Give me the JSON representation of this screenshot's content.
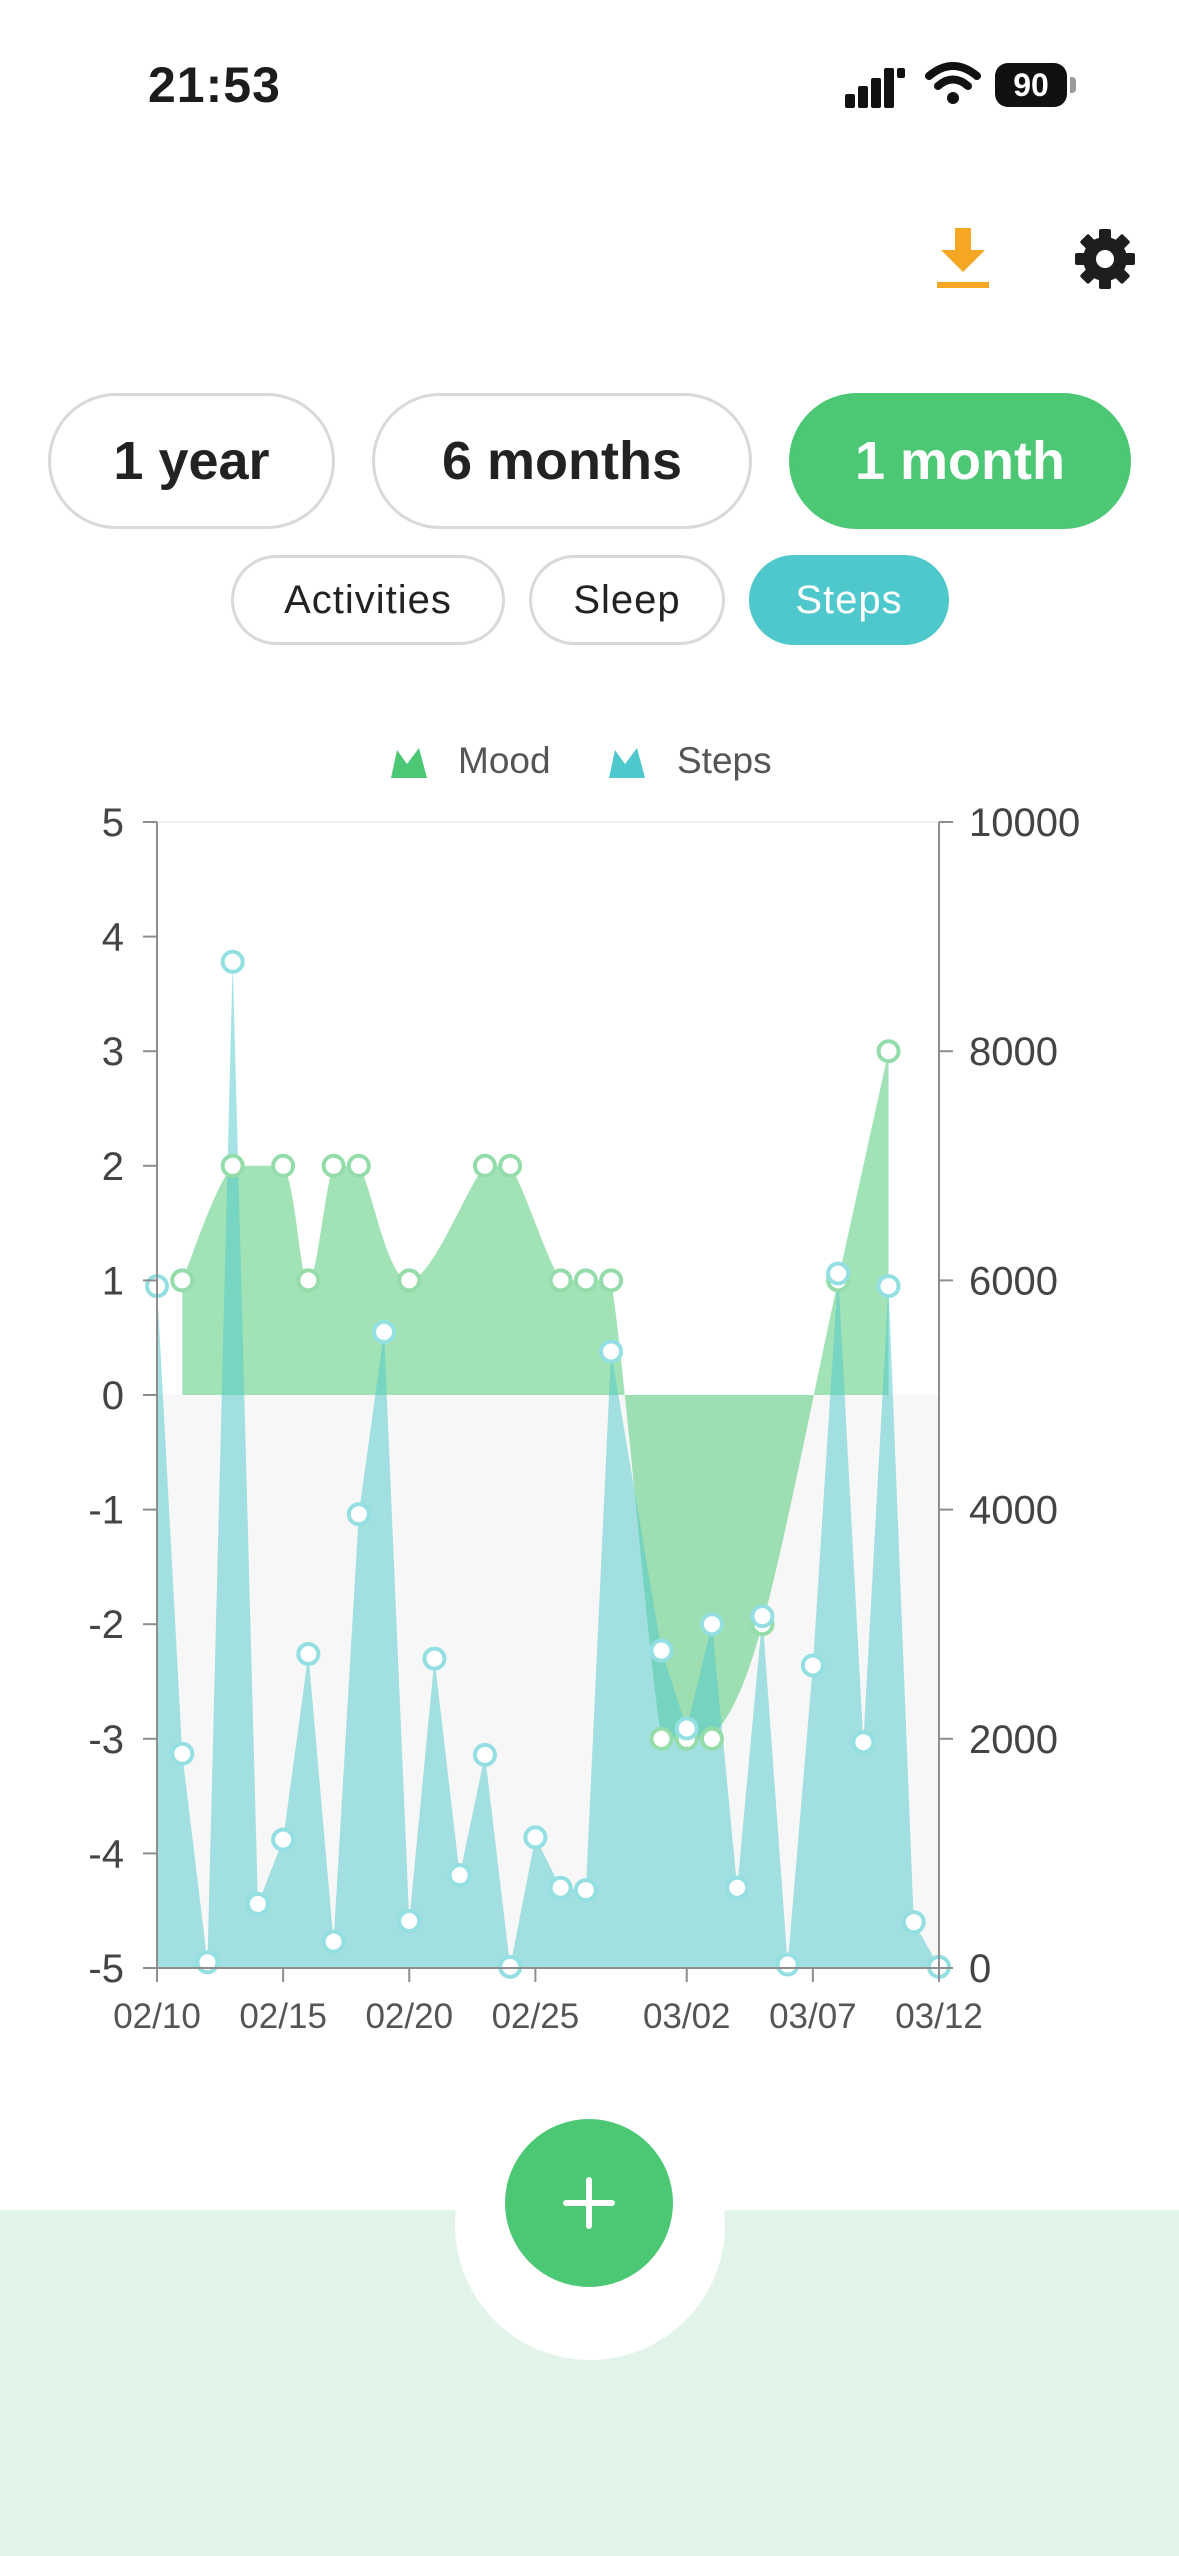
{
  "status": {
    "time": "21:53",
    "battery": "90"
  },
  "toolbar": {
    "download_icon": "download-icon",
    "settings_icon": "gear-icon"
  },
  "range_tabs": [
    {
      "label": "1 year",
      "active": false
    },
    {
      "label": "6 months",
      "active": false
    },
    {
      "label": "1 month",
      "active": true
    }
  ],
  "metric_tabs": [
    {
      "label": "Activities",
      "active": false
    },
    {
      "label": "Sleep",
      "active": false
    },
    {
      "label": "Steps",
      "active": true
    }
  ],
  "colors": {
    "mood": "#4cc774",
    "steps": "#4ec8cc",
    "accent_orange": "#f5a623"
  },
  "chart_data": {
    "type": "area",
    "legend": [
      "Mood",
      "Steps"
    ],
    "legend_position": "top-center",
    "x_ticks": [
      "02/10",
      "02/15",
      "02/20",
      "02/25",
      "03/02",
      "03/07",
      "03/12"
    ],
    "y_left": {
      "ylim": [
        -5,
        5
      ],
      "ticks": [
        5,
        4,
        3,
        2,
        1,
        0,
        -1,
        -2,
        -3,
        -4,
        -5
      ]
    },
    "y_right": {
      "ylim": [
        0,
        10000
      ],
      "ticks": [
        10000,
        8000,
        6000,
        4000,
        2000,
        0
      ]
    },
    "series": [
      {
        "name": "Mood",
        "axis": "left",
        "points": [
          [
            "02/11",
            1
          ],
          [
            "02/13",
            2
          ],
          [
            "02/15",
            2
          ],
          [
            "02/16",
            1
          ],
          [
            "02/17",
            2
          ],
          [
            "02/18",
            2
          ],
          [
            "02/20",
            1
          ],
          [
            "02/23",
            2
          ],
          [
            "02/24",
            2
          ],
          [
            "02/26",
            1
          ],
          [
            "02/27",
            1
          ],
          [
            "02/28",
            1
          ],
          [
            "03/01",
            -3
          ],
          [
            "03/02",
            -3
          ],
          [
            "03/03",
            -3
          ],
          [
            "03/05",
            -2
          ],
          [
            "03/08",
            1
          ],
          [
            "03/10",
            3
          ]
        ]
      },
      {
        "name": "Steps",
        "axis": "right",
        "points": [
          [
            "02/10",
            5950
          ],
          [
            "02/11",
            1870
          ],
          [
            "02/12",
            50
          ],
          [
            "02/13",
            8780
          ],
          [
            "02/14",
            560
          ],
          [
            "02/15",
            1120
          ],
          [
            "02/16",
            2740
          ],
          [
            "02/17",
            230
          ],
          [
            "02/18",
            3960
          ],
          [
            "02/19",
            5550
          ],
          [
            "02/20",
            410
          ],
          [
            "02/21",
            2700
          ],
          [
            "02/22",
            810
          ],
          [
            "02/23",
            1860
          ],
          [
            "02/24",
            10
          ],
          [
            "02/25",
            1140
          ],
          [
            "02/26",
            700
          ],
          [
            "02/27",
            680
          ],
          [
            "02/28",
            5380
          ],
          [
            "03/01",
            2770
          ],
          [
            "03/02",
            2090
          ],
          [
            "03/03",
            3000
          ],
          [
            "03/04",
            700
          ],
          [
            "03/05",
            3070
          ],
          [
            "03/06",
            30
          ],
          [
            "03/07",
            2640
          ],
          [
            "03/08",
            6060
          ],
          [
            "03/09",
            1970
          ],
          [
            "03/10",
            5950
          ],
          [
            "03/11",
            400
          ],
          [
            "03/12",
            10
          ]
        ]
      }
    ]
  }
}
